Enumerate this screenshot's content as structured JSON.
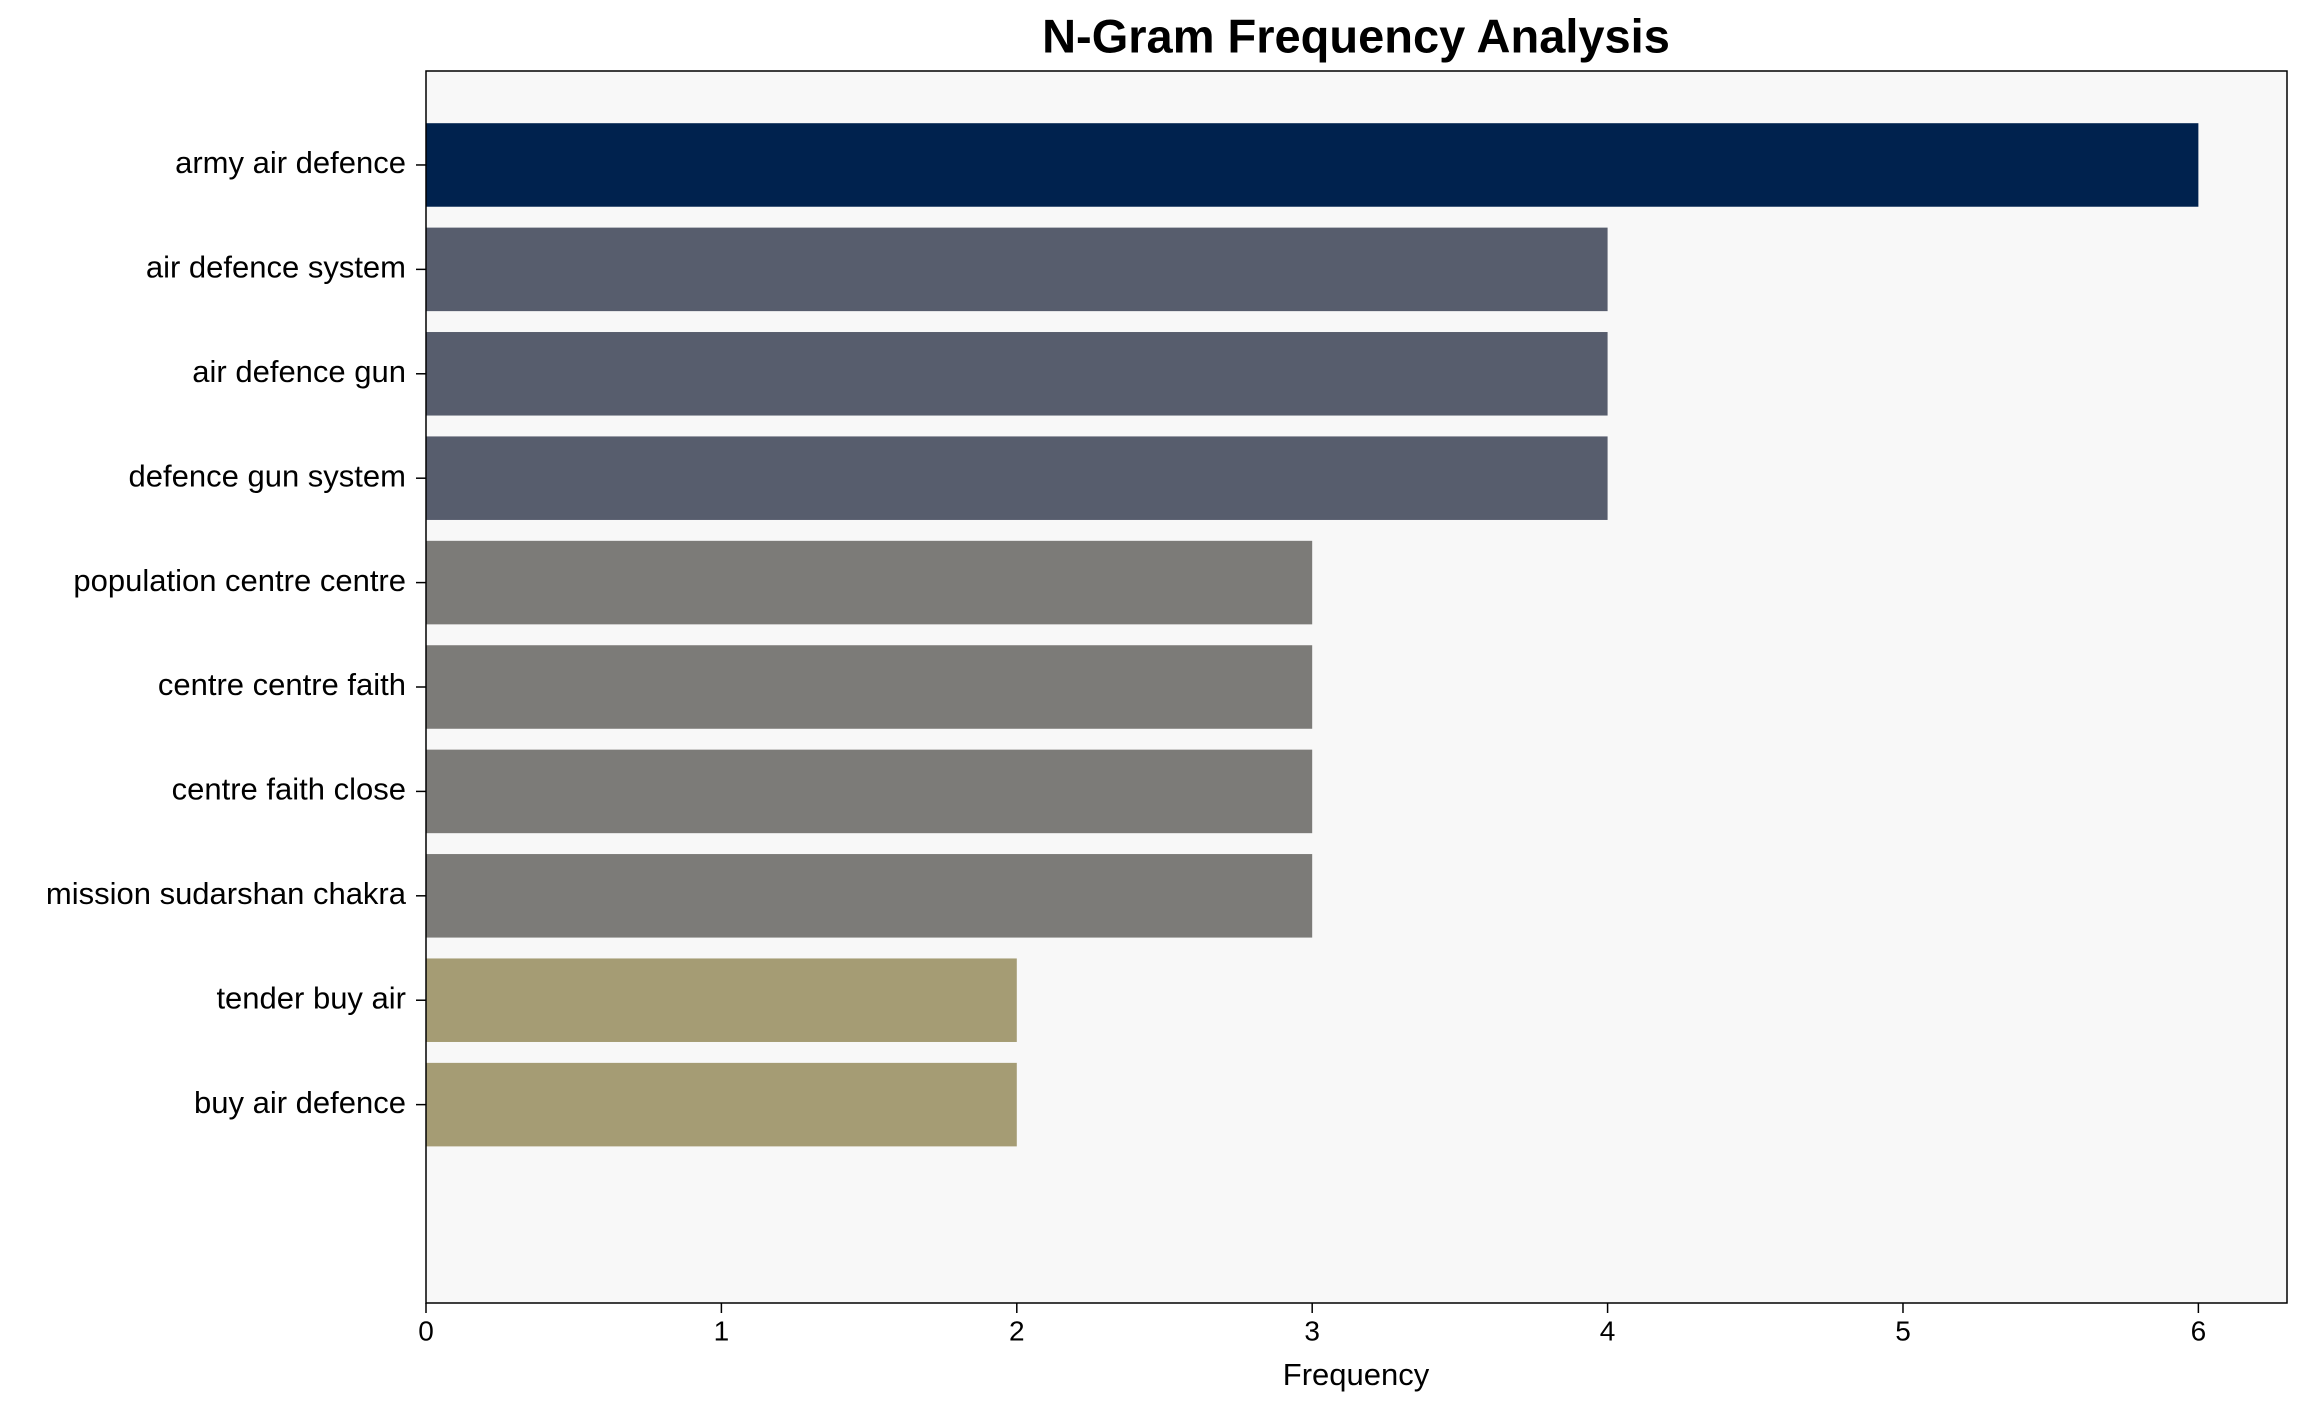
{
  "chart_data": {
    "type": "barh",
    "title": "N-Gram Frequency Analysis",
    "x_label": "Frequency",
    "categories": [
      "army air defence",
      "air defence system",
      "air defence gun",
      "defence gun system",
      "population centre centre",
      "centre centre faith",
      "centre faith close",
      "mission sudarshan chakra",
      "tender buy air",
      "buy air defence"
    ],
    "values": [
      6,
      4,
      4,
      4,
      3,
      3,
      3,
      3,
      2,
      2
    ],
    "colors": [
      "#00224e",
      "#575d6d",
      "#575d6d",
      "#575d6d",
      "#7c7b78",
      "#7c7b78",
      "#7c7b78",
      "#7c7b78",
      "#a59c74",
      "#a59c74"
    ],
    "xlim": [
      0,
      6.3
    ],
    "xticks": [
      0,
      1,
      2,
      3,
      4,
      5,
      6
    ],
    "grid": false
  }
}
